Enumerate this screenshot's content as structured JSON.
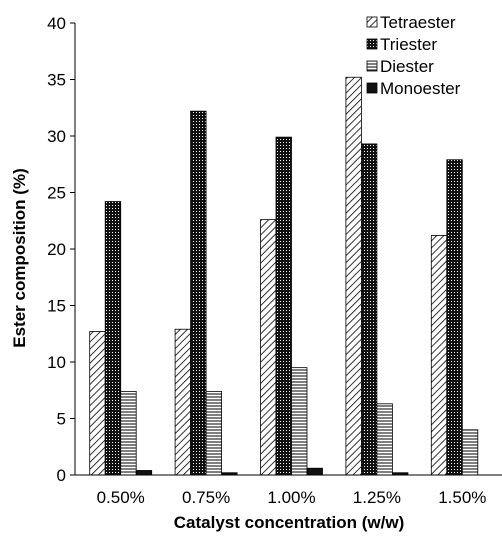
{
  "chart_data": {
    "type": "bar",
    "categories": [
      "0.50%",
      "0.75%",
      "1.00%",
      "1.25%",
      "1.50%"
    ],
    "series": [
      {
        "name": "Tetraester",
        "pattern": "diagonal-hatch",
        "values": [
          12.7,
          12.9,
          22.6,
          35.2,
          21.2
        ]
      },
      {
        "name": "Triester",
        "pattern": "dense-dots",
        "values": [
          24.2,
          32.2,
          29.9,
          29.3,
          27.9
        ]
      },
      {
        "name": "Diester",
        "pattern": "horizontal-lines",
        "values": [
          7.4,
          7.4,
          9.5,
          6.3,
          4.0
        ]
      },
      {
        "name": "Monoester",
        "pattern": "solid-dark",
        "values": [
          0.4,
          0.2,
          0.6,
          0.2,
          0.0
        ]
      }
    ],
    "xlabel": "Catalyst concentration  (w/w)",
    "ylabel": "Ester composition (%)",
    "ylim": [
      0,
      40
    ],
    "yticks": [
      0,
      5,
      10,
      15,
      20,
      25,
      30,
      35,
      40
    ],
    "grid": false,
    "legend_position": "top-right"
  },
  "colors": {
    "bar_outline": "#000000",
    "pattern_ink": "#000000",
    "background": "#ffffff"
  }
}
